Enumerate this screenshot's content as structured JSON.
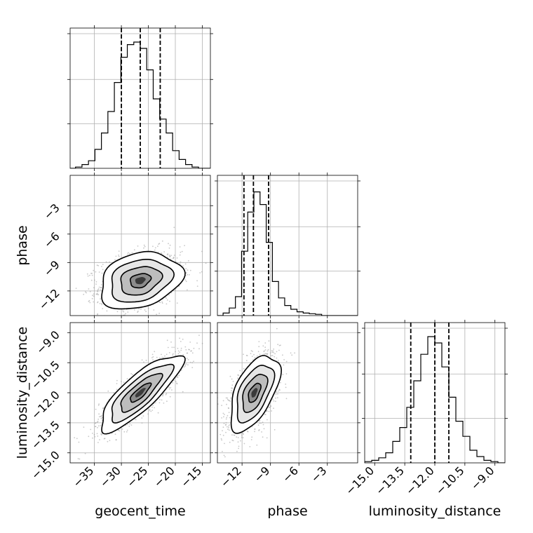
{
  "chart_data": {
    "type": "corner",
    "parameters": [
      "geocent_time",
      "phase",
      "luminosity_distance"
    ],
    "axis_labels": {
      "x": [
        "geocent_time",
        "phase",
        "luminosity_distance"
      ],
      "y": [
        "phase",
        "luminosity_distance"
      ]
    },
    "ranges": {
      "geocent_time": [
        -39.5,
        -13.5
      ],
      "phase": [
        -14.6,
        0.2
      ],
      "luminosity_distance": [
        -15.5,
        -8.5
      ]
    },
    "ticks": {
      "geocent_time": [
        -35,
        -30,
        -25,
        -20,
        -15
      ],
      "phase": [
        -12,
        -9,
        -6,
        -3
      ],
      "luminosity_distance": [
        -15.0,
        -13.5,
        -12.0,
        -10.5,
        -9.0
      ]
    },
    "tick_labels": {
      "geocent_time": [
        "−35",
        "−30",
        "−25",
        "−20",
        "−15"
      ],
      "phase": [
        "−12",
        "−9",
        "−6",
        "−3"
      ],
      "luminosity_distance": [
        "−15.0",
        "−13.5",
        "−12.0",
        "−10.5",
        "−9.0"
      ]
    },
    "histograms": {
      "geocent_time": {
        "bin_edges": [
          -38.5,
          -37.3,
          -36.1,
          -34.9,
          -33.7,
          -32.5,
          -31.3,
          -30.1,
          -28.9,
          -27.7,
          -26.5,
          -25.3,
          -24.1,
          -22.9,
          -21.7,
          -20.5,
          -19.3,
          -18.1,
          -16.9,
          -15.7,
          -14.5
        ],
        "counts": [
          0.01,
          0.03,
          0.06,
          0.15,
          0.28,
          0.45,
          0.68,
          0.88,
          0.98,
          1.0,
          0.95,
          0.78,
          0.55,
          0.39,
          0.28,
          0.14,
          0.07,
          0.03,
          0.01,
          0.0
        ],
        "quantiles": [
          -30.0,
          -26.5,
          -22.8
        ]
      },
      "phase": {
        "bin_edges": [
          -14.0,
          -13.35,
          -12.7,
          -12.05,
          -11.4,
          -10.75,
          -10.1,
          -9.45,
          -8.8,
          -8.15,
          -7.5,
          -6.85,
          -6.2,
          -5.55,
          -4.9,
          -4.25,
          -3.6,
          -2.95
        ],
        "counts": [
          0.02,
          0.06,
          0.15,
          0.51,
          0.82,
          0.98,
          0.88,
          0.58,
          0.27,
          0.14,
          0.08,
          0.05,
          0.03,
          0.02,
          0.015,
          0.01,
          0.0
        ],
        "quantiles": [
          -11.8,
          -10.8,
          -9.2
        ]
      },
      "luminosity_distance": {
        "bin_edges": [
          -15.5,
          -15.15,
          -14.8,
          -14.45,
          -14.1,
          -13.75,
          -13.4,
          -13.05,
          -12.7,
          -12.35,
          -12.0,
          -11.65,
          -11.3,
          -10.95,
          -10.6,
          -10.25,
          -9.9,
          -9.55,
          -9.2,
          -8.85,
          -8.5
        ],
        "counts": [
          0.01,
          0.02,
          0.04,
          0.08,
          0.17,
          0.28,
          0.44,
          0.65,
          0.86,
          1.0,
          0.95,
          0.76,
          0.52,
          0.33,
          0.21,
          0.1,
          0.05,
          0.02,
          0.01,
          0.0
        ],
        "quantiles": [
          -13.2,
          -12.0,
          -11.3
        ]
      }
    },
    "joint": [
      {
        "x": "geocent_time",
        "y": "phase",
        "mean": [
          -26.5,
          -10.9
        ],
        "std": [
          3.8,
          1.5
        ],
        "rho": 0.25,
        "max": -10.6
      },
      {
        "x": "geocent_time",
        "y": "luminosity_distance",
        "mean": [
          -26.5,
          -12.0
        ],
        "std": [
          3.8,
          0.95
        ],
        "rho": 0.82,
        "max": -11.7
      },
      {
        "x": "phase",
        "y": "luminosity_distance",
        "mean": [
          -10.7,
          -12.0
        ],
        "std": [
          1.3,
          0.95
        ],
        "rho": 0.55,
        "max": -11.9
      }
    ],
    "contour_levels_sigma": [
      0.5,
      1.0,
      1.5,
      2.0
    ],
    "grid": true
  }
}
